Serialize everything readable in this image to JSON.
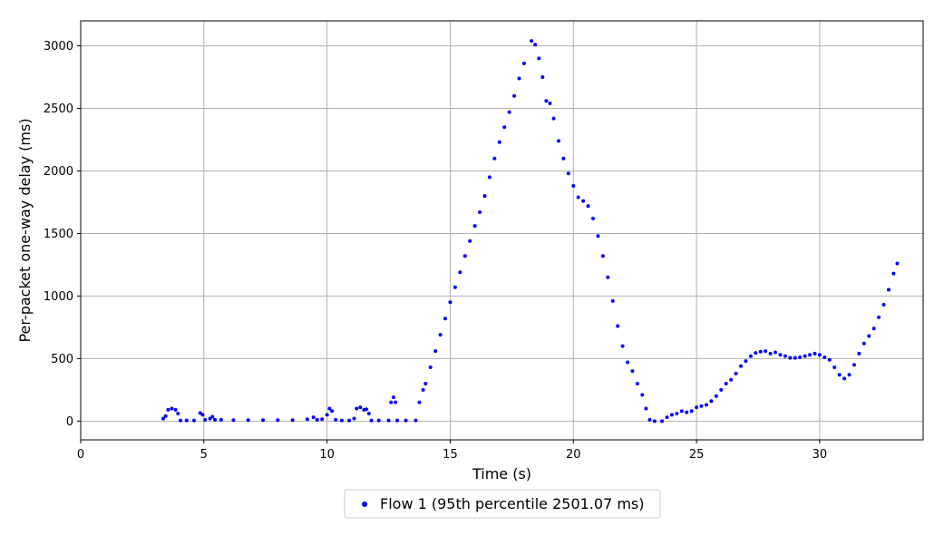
{
  "chart_data": {
    "type": "scatter",
    "title": "",
    "xlabel": "Time (s)",
    "ylabel": "Per-packet one-way delay (ms)",
    "xlim": [
      0,
      34.2
    ],
    "ylim": [
      -150,
      3200
    ],
    "xticks": [
      0,
      5,
      10,
      15,
      20,
      25,
      30
    ],
    "yticks": [
      0,
      500,
      1000,
      1500,
      2000,
      2500,
      3000
    ],
    "grid": true,
    "legend_position": "bottom-center",
    "series": [
      {
        "name": "Flow 1 (95th percentile 2501.07 ms)",
        "color": "#0000ff",
        "points": [
          [
            3.35,
            20
          ],
          [
            3.45,
            40
          ],
          [
            3.55,
            90
          ],
          [
            3.7,
            100
          ],
          [
            3.85,
            90
          ],
          [
            3.95,
            60
          ],
          [
            4.05,
            5
          ],
          [
            4.3,
            5
          ],
          [
            4.6,
            5
          ],
          [
            4.85,
            65
          ],
          [
            4.95,
            50
          ],
          [
            5.05,
            10
          ],
          [
            5.25,
            20
          ],
          [
            5.35,
            35
          ],
          [
            5.45,
            10
          ],
          [
            5.7,
            10
          ],
          [
            6.2,
            8
          ],
          [
            6.8,
            8
          ],
          [
            7.4,
            8
          ],
          [
            8.0,
            8
          ],
          [
            8.6,
            8
          ],
          [
            9.2,
            15
          ],
          [
            9.45,
            30
          ],
          [
            9.6,
            10
          ],
          [
            9.8,
            15
          ],
          [
            10.0,
            50
          ],
          [
            10.1,
            100
          ],
          [
            10.2,
            80
          ],
          [
            10.35,
            10
          ],
          [
            10.6,
            5
          ],
          [
            10.9,
            5
          ],
          [
            11.1,
            20
          ],
          [
            11.2,
            100
          ],
          [
            11.35,
            110
          ],
          [
            11.5,
            90
          ],
          [
            11.6,
            95
          ],
          [
            11.7,
            60
          ],
          [
            11.8,
            5
          ],
          [
            12.1,
            5
          ],
          [
            12.5,
            5
          ],
          [
            12.6,
            150
          ],
          [
            12.7,
            190
          ],
          [
            12.78,
            150
          ],
          [
            12.85,
            5
          ],
          [
            13.2,
            5
          ],
          [
            13.6,
            5
          ],
          [
            13.75,
            150
          ],
          [
            13.9,
            250
          ],
          [
            14.0,
            300
          ],
          [
            14.2,
            430
          ],
          [
            14.4,
            560
          ],
          [
            14.6,
            690
          ],
          [
            14.8,
            820
          ],
          [
            15.0,
            950
          ],
          [
            15.2,
            1070
          ],
          [
            15.4,
            1190
          ],
          [
            15.6,
            1320
          ],
          [
            15.8,
            1440
          ],
          [
            16.0,
            1560
          ],
          [
            16.2,
            1670
          ],
          [
            16.4,
            1800
          ],
          [
            16.6,
            1950
          ],
          [
            16.8,
            2100
          ],
          [
            17.0,
            2230
          ],
          [
            17.2,
            2350
          ],
          [
            17.4,
            2470
          ],
          [
            17.6,
            2600
          ],
          [
            17.8,
            2740
          ],
          [
            18.0,
            2860
          ],
          [
            18.3,
            3040
          ],
          [
            18.45,
            3010
          ],
          [
            18.6,
            2900
          ],
          [
            18.75,
            2750
          ],
          [
            18.9,
            2560
          ],
          [
            19.05,
            2540
          ],
          [
            19.2,
            2420
          ],
          [
            19.4,
            2240
          ],
          [
            19.6,
            2100
          ],
          [
            19.8,
            1980
          ],
          [
            20.0,
            1880
          ],
          [
            20.2,
            1790
          ],
          [
            20.4,
            1760
          ],
          [
            20.6,
            1720
          ],
          [
            20.8,
            1620
          ],
          [
            21.0,
            1480
          ],
          [
            21.2,
            1320
          ],
          [
            21.4,
            1150
          ],
          [
            21.6,
            960
          ],
          [
            21.8,
            760
          ],
          [
            22.0,
            600
          ],
          [
            22.2,
            470
          ],
          [
            22.4,
            400
          ],
          [
            22.6,
            300
          ],
          [
            22.8,
            210
          ],
          [
            22.95,
            100
          ],
          [
            23.1,
            10
          ],
          [
            23.3,
            0
          ],
          [
            23.6,
            0
          ],
          [
            23.8,
            30
          ],
          [
            24.0,
            50
          ],
          [
            24.2,
            60
          ],
          [
            24.4,
            80
          ],
          [
            24.6,
            70
          ],
          [
            24.8,
            80
          ],
          [
            25.0,
            110
          ],
          [
            25.2,
            120
          ],
          [
            25.4,
            130
          ],
          [
            25.6,
            160
          ],
          [
            25.8,
            200
          ],
          [
            26.0,
            250
          ],
          [
            26.2,
            300
          ],
          [
            26.4,
            330
          ],
          [
            26.6,
            380
          ],
          [
            26.8,
            440
          ],
          [
            27.0,
            480
          ],
          [
            27.2,
            520
          ],
          [
            27.4,
            545
          ],
          [
            27.6,
            555
          ],
          [
            27.8,
            560
          ],
          [
            28.0,
            540
          ],
          [
            28.2,
            550
          ],
          [
            28.4,
            530
          ],
          [
            28.6,
            520
          ],
          [
            28.8,
            505
          ],
          [
            29.0,
            505
          ],
          [
            29.2,
            510
          ],
          [
            29.4,
            520
          ],
          [
            29.6,
            530
          ],
          [
            29.8,
            540
          ],
          [
            30.0,
            530
          ],
          [
            30.2,
            510
          ],
          [
            30.4,
            490
          ],
          [
            30.6,
            430
          ],
          [
            30.8,
            370
          ],
          [
            31.0,
            340
          ],
          [
            31.2,
            370
          ],
          [
            31.4,
            450
          ],
          [
            31.6,
            540
          ],
          [
            31.8,
            620
          ],
          [
            32.0,
            680
          ],
          [
            32.2,
            740
          ],
          [
            32.4,
            830
          ],
          [
            32.6,
            930
          ],
          [
            32.8,
            1050
          ],
          [
            33.0,
            1180
          ],
          [
            33.15,
            1260
          ]
        ]
      }
    ]
  }
}
